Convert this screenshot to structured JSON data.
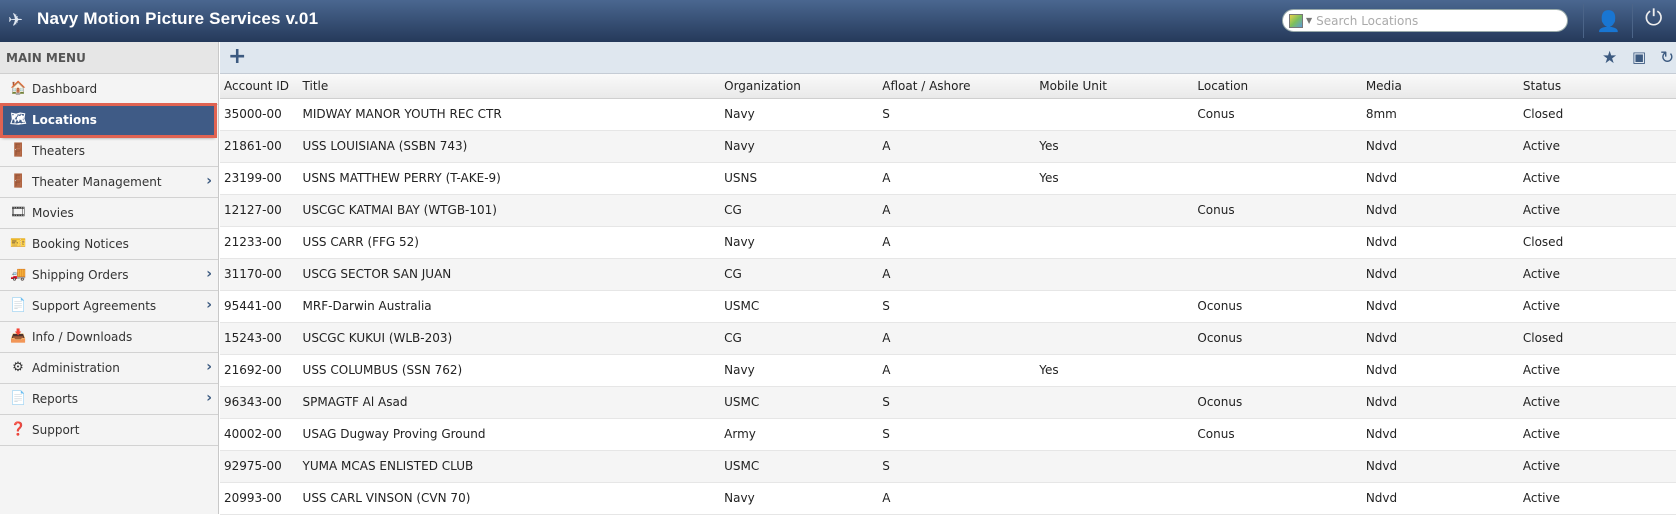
{
  "app": {
    "title": "Navy Motion Picture Services v.01",
    "search_placeholder": "Search Locations"
  },
  "sidebar": {
    "heading": "MAIN MENU",
    "items": [
      {
        "label": "Dashboard",
        "icon": "house-icon",
        "sub": false
      },
      {
        "label": "Locations",
        "icon": "map-icon",
        "sub": false,
        "active": true
      },
      {
        "label": "Theaters",
        "icon": "door-icon",
        "sub": false
      },
      {
        "label": "Theater Management",
        "icon": "door-icon",
        "sub": true
      },
      {
        "label": "Movies",
        "icon": "film-icon",
        "sub": false
      },
      {
        "label": "Booking Notices",
        "icon": "ticket-icon",
        "sub": false
      },
      {
        "label": "Shipping Orders",
        "icon": "truck-icon",
        "sub": true
      },
      {
        "label": "Support Agreements",
        "icon": "document-icon",
        "sub": true
      },
      {
        "label": "Info / Downloads",
        "icon": "download-document-icon",
        "sub": false
      },
      {
        "label": "Administration",
        "icon": "gear-icon",
        "sub": true
      },
      {
        "label": "Reports",
        "icon": "document-icon",
        "sub": true
      },
      {
        "label": "Support",
        "icon": "help-icon",
        "sub": false
      }
    ]
  },
  "table": {
    "columns": [
      "Account ID",
      "Title",
      "Organization",
      "Afloat / Ashore",
      "Mobile Unit",
      "Location",
      "Media",
      "Status"
    ],
    "rows": [
      [
        "35000-00",
        "MIDWAY MANOR YOUTH REC CTR",
        "Navy",
        "S",
        "",
        "Conus",
        "8mm",
        "Closed"
      ],
      [
        "21861-00",
        "USS LOUISIANA (SSBN 743)",
        "Navy",
        "A",
        "Yes",
        "",
        "Ndvd",
        "Active"
      ],
      [
        "23199-00",
        "USNS MATTHEW PERRY (T-AKE-9)",
        "USNS",
        "A",
        "Yes",
        "",
        "Ndvd",
        "Active"
      ],
      [
        "12127-00",
        "USCGC KATMAI BAY (WTGB-101)",
        "CG",
        "A",
        "",
        "Conus",
        "Ndvd",
        "Active"
      ],
      [
        "21233-00",
        "USS CARR (FFG 52)",
        "Navy",
        "A",
        "",
        "",
        "Ndvd",
        "Closed"
      ],
      [
        "31170-00",
        "USCG SECTOR SAN JUAN",
        "CG",
        "A",
        "",
        "",
        "Ndvd",
        "Active"
      ],
      [
        "95441-00",
        "MRF-Darwin Australia",
        "USMC",
        "S",
        "",
        "Oconus",
        "Ndvd",
        "Active"
      ],
      [
        "15243-00",
        "USCGC KUKUI (WLB-203)",
        "CG",
        "A",
        "",
        "Oconus",
        "Ndvd",
        "Closed"
      ],
      [
        "21692-00",
        "USS COLUMBUS (SSN 762)",
        "Navy",
        "A",
        "Yes",
        "",
        "Ndvd",
        "Active"
      ],
      [
        "96343-00",
        "SPMAGTF Al Asad",
        "USMC",
        "S",
        "",
        "Oconus",
        "Ndvd",
        "Active"
      ],
      [
        "40002-00",
        "USAG Dugway Proving Ground",
        "Army",
        "S",
        "",
        "Conus",
        "Ndvd",
        "Active"
      ],
      [
        "92975-00",
        "YUMA MCAS ENLISTED CLUB",
        "USMC",
        "S",
        "",
        "",
        "Ndvd",
        "Active"
      ],
      [
        "20993-00",
        "USS CARL VINSON (CVN 70)",
        "Navy",
        "A",
        "",
        "",
        "Ndvd",
        "Active"
      ]
    ]
  }
}
